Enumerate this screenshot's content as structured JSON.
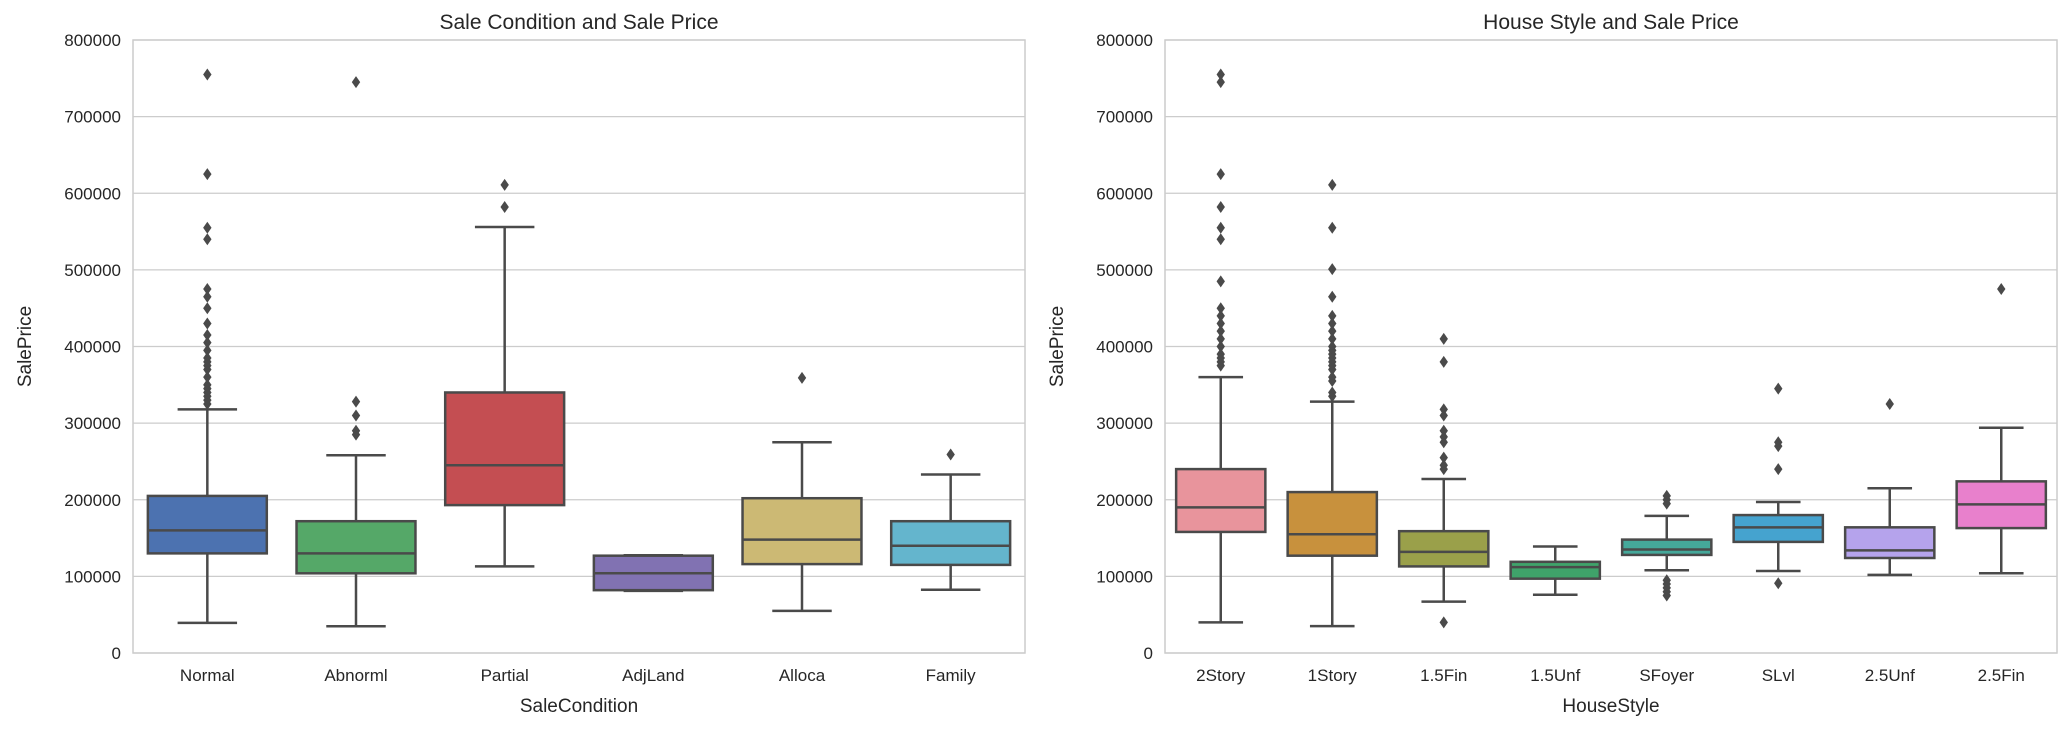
{
  "chart_data": [
    {
      "type": "box",
      "title": "Sale Condition and Sale Price",
      "xlabel": "SaleCondition",
      "ylabel": "SalePrice",
      "ylim": [
        0,
        800000
      ],
      "yticks": [
        0,
        100000,
        200000,
        300000,
        400000,
        500000,
        600000,
        700000,
        800000
      ],
      "grid": true,
      "categories": [
        "Normal",
        "Abnorml",
        "Partial",
        "AdjLand",
        "Alloca",
        "Family"
      ],
      "colors": [
        "#4c72b0",
        "#55a868",
        "#c44e52",
        "#8172b2",
        "#ccb974",
        "#64b5cd"
      ],
      "boxes": [
        {
          "whislo": 39300,
          "q1": 130000,
          "med": 160000,
          "q3": 205000,
          "whishi": 318000,
          "fliers": [
            755000,
            625000,
            555000,
            540000,
            475000,
            465000,
            450000,
            430000,
            415000,
            405000,
            395000,
            385000,
            380000,
            375000,
            370000,
            360000,
            350000,
            345000,
            340000,
            335000,
            330000,
            325000
          ]
        },
        {
          "whislo": 34900,
          "q1": 104000,
          "med": 130000,
          "q3": 172000,
          "whishi": 258000,
          "fliers": [
            745000,
            328000,
            310000,
            290000,
            285000
          ]
        },
        {
          "whislo": 113000,
          "q1": 193000,
          "med": 245000,
          "q3": 340000,
          "whishi": 556000,
          "fliers": [
            611000,
            582000
          ]
        },
        {
          "whislo": 81000,
          "q1": 82000,
          "med": 104000,
          "q3": 127000,
          "whishi": 127500,
          "fliers": []
        },
        {
          "whislo": 55000,
          "q1": 116000,
          "med": 148000,
          "q3": 202000,
          "whishi": 275000,
          "fliers": [
            359000
          ]
        },
        {
          "whislo": 82500,
          "q1": 115000,
          "med": 140000,
          "q3": 172000,
          "whishi": 233000,
          "fliers": [
            259000
          ]
        }
      ]
    },
    {
      "type": "box",
      "title": "House Style and Sale Price",
      "xlabel": "HouseStyle",
      "ylabel": "SalePrice",
      "ylim": [
        0,
        800000
      ],
      "yticks": [
        0,
        100000,
        200000,
        300000,
        400000,
        500000,
        600000,
        700000,
        800000
      ],
      "grid": true,
      "categories": [
        "2Story",
        "1Story",
        "1.5Fin",
        "1.5Unf",
        "SFoyer",
        "SLvl",
        "2.5Unf",
        "2.5Fin"
      ],
      "colors": [
        "#e8949c",
        "#c8913d",
        "#9aa04a",
        "#3fa36a",
        "#45a89a",
        "#45a3cf",
        "#b5a3ec",
        "#e880cc"
      ],
      "boxes": [
        {
          "whislo": 40000,
          "q1": 158000,
          "med": 190000,
          "q3": 240000,
          "whishi": 360000,
          "fliers": [
            755000,
            745000,
            625000,
            582000,
            555000,
            540000,
            485000,
            450000,
            440000,
            430000,
            420000,
            410000,
            400000,
            390000,
            385000,
            380000,
            375000
          ]
        },
        {
          "whislo": 35000,
          "q1": 127000,
          "med": 155000,
          "q3": 210000,
          "whishi": 328000,
          "fliers": [
            611000,
            555000,
            501000,
            465000,
            440000,
            430000,
            420000,
            410000,
            400000,
            395000,
            390000,
            385000,
            380000,
            375000,
            370000,
            360000,
            355000,
            340000,
            335000
          ]
        },
        {
          "whislo": 67000,
          "q1": 113000,
          "med": 132000,
          "q3": 159000,
          "whishi": 227000,
          "fliers": [
            410000,
            380000,
            318000,
            310000,
            290000,
            282000,
            275000,
            255000,
            245000,
            240000,
            40000
          ]
        },
        {
          "whislo": 76000,
          "q1": 97000,
          "med": 112000,
          "q3": 119000,
          "whishi": 139000,
          "fliers": []
        },
        {
          "whislo": 108000,
          "q1": 128000,
          "med": 135000,
          "q3": 148000,
          "whishi": 179000,
          "fliers": [
            205000,
            200000,
            195000,
            95000,
            90000,
            85000,
            80000,
            75000
          ]
        },
        {
          "whislo": 107000,
          "q1": 145000,
          "med": 164000,
          "q3": 180000,
          "whishi": 197000,
          "fliers": [
            345000,
            275000,
            270000,
            240000,
            91000
          ]
        },
        {
          "whislo": 102000,
          "q1": 124000,
          "med": 134000,
          "q3": 164000,
          "whishi": 215000,
          "fliers": [
            325000
          ]
        },
        {
          "whislo": 104000,
          "q1": 163000,
          "med": 194000,
          "q3": 224000,
          "whishi": 294000,
          "fliers": [
            475000
          ]
        }
      ]
    }
  ]
}
